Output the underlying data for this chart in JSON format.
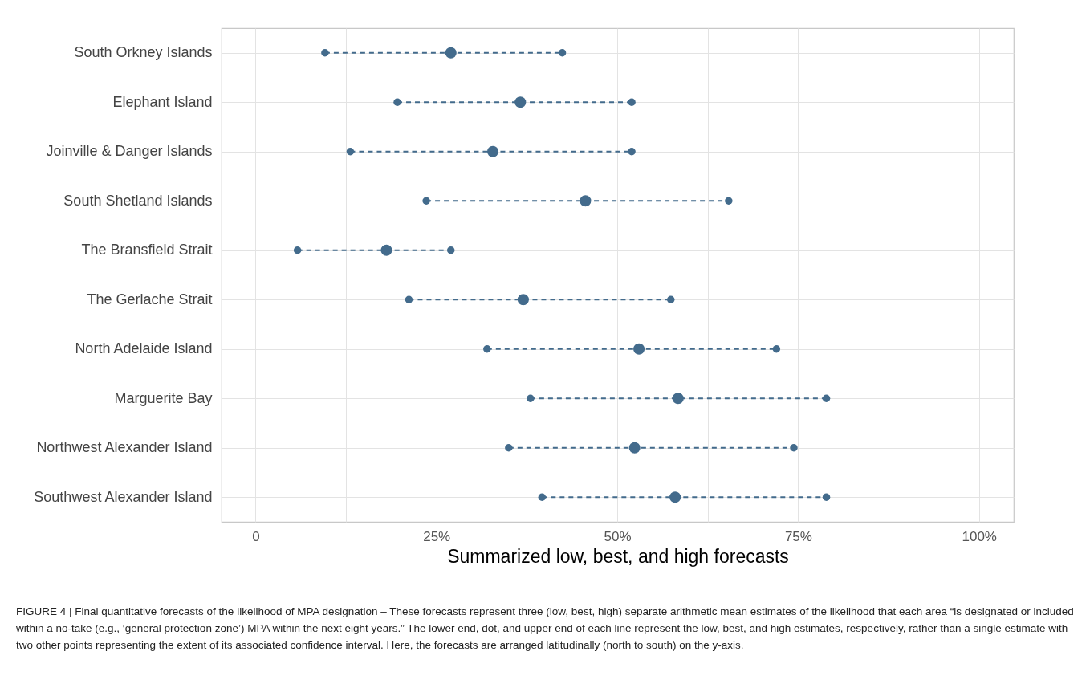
{
  "chart_data": {
    "type": "scatter",
    "orientation": "horizontal",
    "xlabel": "Summarized low, best, and high forecasts",
    "categories": [
      "South Orkney Islands",
      "Elephant Island",
      "Joinville & Danger Islands",
      "South Shetland Islands",
      "The Bransfield Strait",
      "The Gerlache Strait",
      "North Adelaide Island",
      "Marguerite Bay",
      "Northwest Alexander Island",
      "Southwest Alexander Island"
    ],
    "series": [
      {
        "color": "#436b8c",
        "values": [
          9.6,
          19.6,
          13.1,
          23.6,
          5.8,
          21.2,
          32,
          38,
          35,
          39.6
        ]
      },
      {
        "color": "#436b8c",
        "values": [
          27,
          36.6,
          32.8,
          45.6,
          18.1,
          37,
          53,
          58.4,
          52.4,
          58
        ]
      },
      {
        "color": "#436b8c",
        "values": [
          42.4,
          52,
          52,
          65.4,
          27,
          57.4,
          72,
          78.9,
          74.4,
          78.9
        ]
      }
    ],
    "xlim": [
      -4.7,
      104.8
    ],
    "xticks": [
      0,
      {
        "value": 12.5,
        "label": null
      },
      {
        "value": 25,
        "label": "25%"
      },
      {
        "value": 37.5,
        "label": null
      },
      {
        "value": 50,
        "label": "50%"
      },
      {
        "value": 62.5,
        "label": null
      },
      {
        "value": 75,
        "label": "75%"
      },
      {
        "value": 87.5,
        "label": null
      },
      {
        "value": 100,
        "label": "100%"
      }
    ],
    "grid": true,
    "marker": "circle",
    "line_style": "dashed",
    "annotations": [
      "FIGURE 4 | Final quantitative forecasts of the likelihood of MPA designation – These forecasts represent three (low, best, high) separate arithmetic mean estimates of the likelihood that each area “is designated or included within a no-take (e.g., ‘general protection zone’) MPA within the next eight years.” The lower end, dot, and upper end of each line represent the low, best, and high estimates, respectively, rather than a single estimate with two other points representing the extent of its associated confidence interval. Here, the forecasts are arranged latitudinally (north to south) on the y-axis."
    ]
  }
}
